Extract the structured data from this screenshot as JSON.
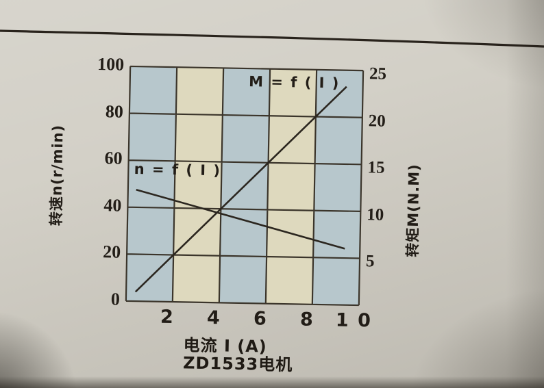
{
  "photo": {
    "page_bg": "#d3d0c7",
    "top_edge_line_color": "#29231c"
  },
  "chart": {
    "title": "ZD1533电机",
    "xlabel": "电流 I (A)",
    "left_axis_title": "转速n(r/min)",
    "right_axis_title": "转矩M(N.M)",
    "x_ticks": [
      "2",
      "4",
      "6",
      "8",
      "1 0"
    ],
    "y_left_ticks": [
      "100",
      "80",
      "60",
      "40",
      "20",
      "0"
    ],
    "y_right_ticks": [
      "25",
      "20",
      "15",
      "10",
      "5"
    ],
    "curve_labels": {
      "m": "M = f ( I )",
      "n": "n = f ( I )"
    },
    "colors": {
      "cell_blue": "#b7c7cc",
      "cell_cream": "#ded9be",
      "grid_line": "#3b352b",
      "curve": "#2b261f",
      "text": "#221d17"
    }
  },
  "chart_data": {
    "type": "line",
    "title": "ZD1533电机",
    "xlabel": "电流 I (A)",
    "ylabel_left": "转速n(r/min)",
    "ylabel_right": "转矩M(N.M)",
    "xlim": [
      0,
      10
    ],
    "ylim_left": [
      0,
      100
    ],
    "ylim_right": [
      0,
      25
    ],
    "x_tick_values": [
      2,
      4,
      6,
      8,
      10
    ],
    "grid": true,
    "legend_position": "inline-labels",
    "series": [
      {
        "name": "M = f ( I )",
        "axis": "right",
        "x": [
          0.4,
          2,
          4,
          6,
          8,
          9.3
        ],
        "y": [
          1.0,
          5,
          10,
          15,
          20,
          23.25
        ]
      },
      {
        "name": "n = f ( I )",
        "axis": "left",
        "x": [
          0.35,
          4,
          9.35
        ],
        "y": [
          47.5,
          38,
          24
        ]
      }
    ]
  }
}
